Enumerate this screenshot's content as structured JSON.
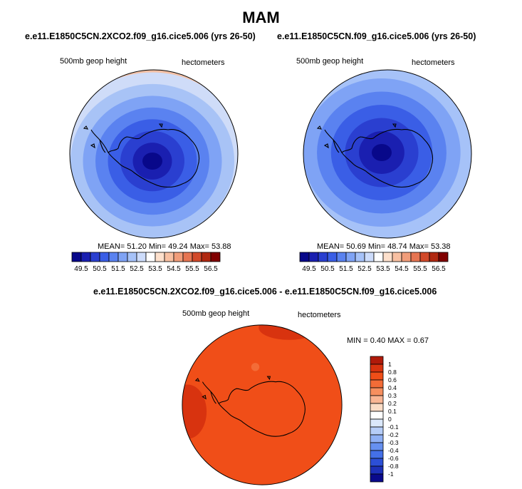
{
  "title": "MAM",
  "panels": [
    {
      "title": "e.e11.E1850C5CN.2XCO2.f09_g16.cice5.006 (yrs 26-50)",
      "left_label": "500mb geop height",
      "right_label": "hectometers",
      "stats": {
        "mean_label": "MEAN=",
        "mean": "51.20",
        "min_label": "Min=",
        "min": "49.24",
        "max_label": "Max=",
        "max": "53.88"
      }
    },
    {
      "title": "e.e11.E1850C5CN.f09_g16.cice5.006 (yrs 26-50)",
      "left_label": "500mb geop height",
      "right_label": "hectometers",
      "stats": {
        "mean_label": "MEAN=",
        "mean": "50.69",
        "min_label": "Min=",
        "min": "48.74",
        "max_label": "Max=",
        "max": "53.38"
      }
    }
  ],
  "colorbar_top": {
    "colors": [
      "#08088a",
      "#1a1fb0",
      "#2a3fd0",
      "#3a5ee6",
      "#5a82f0",
      "#7fa3f5",
      "#a6c2f8",
      "#cddcfb",
      "#ffffff",
      "#fde0cc",
      "#f8c0a2",
      "#f19d7a",
      "#e67552",
      "#d24a2a",
      "#b02810",
      "#800000"
    ],
    "labels": [
      "49.5",
      "50.5",
      "51.5",
      "52.5",
      "53.5",
      "54.5",
      "55.5",
      "56.5"
    ]
  },
  "diff": {
    "title": "e.e11.E1850C5CN.2XCO2.f09_g16.cice5.006 - e.e11.E1850C5CN.f09_g16.cice5.006",
    "left_label": "500mb geop height",
    "right_label": "hectometers",
    "min_label": "MIN =",
    "min": "0.40",
    "max_label": "MAX =",
    "max": "0.67"
  },
  "colorbar_diff": {
    "colors": [
      "#b01a0a",
      "#d8330f",
      "#f04e18",
      "#f36c37",
      "#f68f5f",
      "#f9b594",
      "#fbdcc6",
      "#ffffff",
      "#dbe8fb",
      "#b6cdf8",
      "#8fb0f5",
      "#6690f0",
      "#4470e8",
      "#2c4fd6",
      "#1d30b8",
      "#0a0a8c"
    ],
    "labels": [
      "1",
      "0.8",
      "0.6",
      "0.4",
      "0.3",
      "0.2",
      "0.1",
      "0",
      "-0.1",
      "-0.2",
      "-0.3",
      "-0.4",
      "-0.6",
      "-0.8",
      "-1"
    ]
  },
  "field_colors": {
    "left": [
      "#f3c0a5",
      "#cfdcf8",
      "#a8c3f6",
      "#7fa3f5",
      "#5a82f0",
      "#3a5ee6",
      "#2a3fd0",
      "#1a1fb0",
      "#08088a"
    ],
    "right": [
      "#cddcfb",
      "#a6c2f8",
      "#7fa3f5",
      "#5a82f0",
      "#3a5ee6",
      "#2a3fd0",
      "#1a1fb0",
      "#08088a"
    ],
    "diff_main": "#f04e18",
    "diff_high": "#d8330f",
    "diff_low": "#f36c37"
  }
}
